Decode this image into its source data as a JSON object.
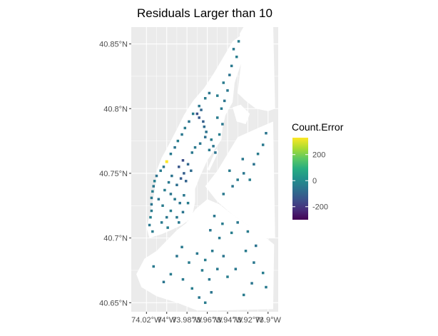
{
  "chart_data": {
    "type": "map",
    "title": "Residuals Larger than 10",
    "xlabel": "",
    "ylabel": "",
    "x_ticks": [
      {
        "value": -74.02,
        "label": "74.02°W"
      },
      {
        "value": -74.0,
        "label": "74°W"
      },
      {
        "value": -73.98,
        "label": "73.98°W"
      },
      {
        "value": -73.96,
        "label": "73.96°W"
      },
      {
        "value": -73.94,
        "label": "73.94°W"
      },
      {
        "value": -73.92,
        "label": "73.92°W"
      },
      {
        "value": -73.9,
        "label": "73.9°W"
      }
    ],
    "y_ticks": [
      {
        "value": 40.65,
        "label": "40.65°N"
      },
      {
        "value": 40.7,
        "label": "40.7°N"
      },
      {
        "value": 40.75,
        "label": "40.75°N"
      },
      {
        "value": 40.8,
        "label": "40.8°N"
      },
      {
        "value": 40.85,
        "label": "40.85°N"
      }
    ],
    "xlim": [
      -74.035,
      -73.89
    ],
    "ylim": [
      40.643,
      40.863
    ],
    "grid": true,
    "legend": {
      "title": "Count.Error",
      "placement": "right",
      "scale": "viridis",
      "range": [
        -300,
        330
      ],
      "ticks": [
        {
          "value": 200,
          "label": "200"
        },
        {
          "value": 0,
          "label": "0"
        },
        {
          "value": -200,
          "label": "-200"
        }
      ]
    },
    "colors": {
      "panel": "#ebebeb",
      "grid": "#ffffff",
      "land": "#ffffff"
    },
    "regions": [
      {
        "name": "manhattan",
        "outline": [
          [
            -74.017,
            40.7
          ],
          [
            -74.02,
            40.708
          ],
          [
            -74.016,
            40.72
          ],
          [
            -74.013,
            40.732
          ],
          [
            -74.011,
            40.742
          ],
          [
            -74.01,
            40.752
          ],
          [
            -74.005,
            40.762
          ],
          [
            -73.998,
            40.772
          ],
          [
            -73.99,
            40.784
          ],
          [
            -73.983,
            40.795
          ],
          [
            -73.974,
            40.806
          ],
          [
            -73.963,
            40.816
          ],
          [
            -73.953,
            40.828
          ],
          [
            -73.944,
            40.84
          ],
          [
            -73.935,
            40.852
          ],
          [
            -73.928,
            40.856
          ],
          [
            -73.92,
            40.852
          ],
          [
            -73.918,
            40.842
          ],
          [
            -73.927,
            40.834
          ],
          [
            -73.933,
            40.82
          ],
          [
            -73.935,
            40.805
          ],
          [
            -73.942,
            40.795
          ],
          [
            -73.945,
            40.785
          ],
          [
            -73.946,
            40.776
          ],
          [
            -73.953,
            40.768
          ],
          [
            -73.96,
            40.76
          ],
          [
            -73.967,
            40.748
          ],
          [
            -73.972,
            40.738
          ],
          [
            -73.972,
            40.728
          ],
          [
            -73.975,
            40.716
          ],
          [
            -73.985,
            40.71
          ],
          [
            -73.996,
            40.706
          ],
          [
            -74.005,
            40.703
          ]
        ]
      },
      {
        "name": "bronx",
        "outline": [
          [
            -73.926,
            40.84
          ],
          [
            -73.928,
            40.858
          ],
          [
            -73.922,
            40.866
          ],
          [
            -73.895,
            40.866
          ],
          [
            -73.893,
            40.8
          ],
          [
            -73.9,
            40.798
          ],
          [
            -73.912,
            40.8
          ],
          [
            -73.922,
            40.806
          ],
          [
            -73.93,
            40.812
          ]
        ]
      },
      {
        "name": "randalls-island",
        "outline": [
          [
            -73.935,
            40.801
          ],
          [
            -73.927,
            40.803
          ],
          [
            -73.918,
            40.796
          ],
          [
            -73.922,
            40.788
          ],
          [
            -73.931,
            40.79
          ]
        ]
      },
      {
        "name": "queens",
        "outline": [
          [
            -73.962,
            40.74
          ],
          [
            -73.95,
            40.752
          ],
          [
            -73.94,
            40.765
          ],
          [
            -73.93,
            40.778
          ],
          [
            -73.91,
            40.785
          ],
          [
            -73.895,
            40.79
          ],
          [
            -73.893,
            40.7
          ],
          [
            -73.905,
            40.7
          ],
          [
            -73.92,
            40.71
          ],
          [
            -73.935,
            40.718
          ],
          [
            -73.95,
            40.728
          ]
        ]
      },
      {
        "name": "brooklyn",
        "outline": [
          [
            -73.972,
            40.722
          ],
          [
            -73.96,
            40.73
          ],
          [
            -73.948,
            40.726
          ],
          [
            -73.935,
            40.718
          ],
          [
            -73.92,
            40.71
          ],
          [
            -73.905,
            40.702
          ],
          [
            -73.894,
            40.695
          ],
          [
            -73.895,
            40.645
          ],
          [
            -73.95,
            40.644
          ],
          [
            -73.97,
            40.644
          ],
          [
            -73.99,
            40.65
          ],
          [
            -74.01,
            40.655
          ],
          [
            -74.025,
            40.662
          ],
          [
            -74.03,
            40.672
          ],
          [
            -74.022,
            40.684
          ],
          [
            -74.01,
            40.69
          ],
          [
            -74.0,
            40.698
          ],
          [
            -73.99,
            40.706
          ],
          [
            -73.98,
            40.712
          ]
        ]
      },
      {
        "name": "roosevelt-island",
        "outline": [
          [
            -73.96,
            40.753
          ],
          [
            -73.955,
            40.762
          ],
          [
            -73.951,
            40.769
          ],
          [
            -73.949,
            40.767
          ],
          [
            -73.953,
            40.76
          ],
          [
            -73.958,
            40.752
          ]
        ]
      }
    ],
    "points": [
      [
        -74.0,
        40.759,
        330
      ],
      [
        -74.003,
        40.755,
        -55
      ],
      [
        -74.006,
        40.752,
        -40
      ],
      [
        -74.01,
        40.748,
        -60
      ],
      [
        -74.012,
        40.744,
        -30
      ],
      [
        -74.013,
        40.74,
        -50
      ],
      [
        -74.014,
        40.736,
        -35
      ],
      [
        -74.015,
        40.731,
        -45
      ],
      [
        -74.015,
        40.726,
        -60
      ],
      [
        -74.015,
        40.721,
        -40
      ],
      [
        -74.016,
        40.716,
        -30
      ],
      [
        -74.017,
        40.71,
        -50
      ],
      [
        -74.014,
        40.705,
        -40
      ],
      [
        -73.996,
        40.765,
        -45
      ],
      [
        -73.992,
        40.77,
        -55
      ],
      [
        -73.989,
        40.775,
        -35
      ],
      [
        -73.985,
        40.78,
        -50
      ],
      [
        -73.982,
        40.785,
        -40
      ],
      [
        -73.978,
        40.79,
        -60
      ],
      [
        -73.974,
        40.796,
        -35
      ],
      [
        -73.968,
        40.802,
        -50
      ],
      [
        -73.962,
        40.808,
        -40
      ],
      [
        -73.958,
        40.812,
        -55
      ],
      [
        -73.97,
        40.796,
        -140
      ],
      [
        -73.968,
        40.793,
        -120
      ],
      [
        -73.966,
        40.799,
        -90
      ],
      [
        -73.964,
        40.79,
        -110
      ],
      [
        -73.963,
        40.786,
        -80
      ],
      [
        -73.961,
        40.782,
        -60
      ],
      [
        -73.962,
        40.778,
        -70
      ],
      [
        -73.967,
        40.773,
        -55
      ],
      [
        -73.972,
        40.77,
        -45
      ],
      [
        -73.975,
        40.766,
        -50
      ],
      [
        -73.956,
        40.776,
        -40
      ],
      [
        -73.954,
        40.771,
        -55
      ],
      [
        -73.958,
        40.768,
        -45
      ],
      [
        -73.952,
        40.766,
        -60
      ],
      [
        -73.948,
        40.78,
        -35
      ],
      [
        -73.945,
        40.788,
        -50
      ],
      [
        -73.95,
        40.793,
        -40
      ],
      [
        -73.946,
        40.8,
        -45
      ],
      [
        -73.943,
        40.806,
        -55
      ],
      [
        -73.95,
        40.81,
        -35
      ],
      [
        -73.94,
        40.814,
        -50
      ],
      [
        -73.944,
        40.82,
        -40
      ],
      [
        -73.938,
        40.826,
        -60
      ],
      [
        -73.936,
        40.833,
        -45
      ],
      [
        -73.931,
        40.84,
        -35
      ],
      [
        -73.934,
        40.846,
        -50
      ],
      [
        -73.929,
        40.852,
        -40
      ],
      [
        -73.984,
        40.76,
        -150
      ],
      [
        -73.988,
        40.755,
        -130
      ],
      [
        -73.983,
        40.75,
        -110
      ],
      [
        -73.979,
        40.757,
        -90
      ],
      [
        -73.986,
        40.746,
        -120
      ],
      [
        -73.976,
        40.752,
        -80
      ],
      [
        -73.981,
        40.744,
        -100
      ],
      [
        -73.99,
        40.741,
        -70
      ],
      [
        -73.995,
        40.748,
        -60
      ],
      [
        -73.998,
        40.743,
        -50
      ],
      [
        -74.002,
        40.737,
        -40
      ],
      [
        -73.996,
        40.734,
        -55
      ],
      [
        -73.992,
        40.73,
        -45
      ],
      [
        -73.987,
        40.727,
        -60
      ],
      [
        -73.983,
        40.733,
        -50
      ],
      [
        -73.979,
        40.727,
        -40
      ],
      [
        -73.984,
        40.72,
        -55
      ],
      [
        -73.99,
        40.716,
        -45
      ],
      [
        -73.996,
        40.721,
        -35
      ],
      [
        -74.0,
        40.716,
        -50
      ],
      [
        -74.004,
        40.725,
        -40
      ],
      [
        -74.008,
        40.73,
        -60
      ],
      [
        -74.005,
        40.712,
        -45
      ],
      [
        -73.999,
        40.708,
        -35
      ],
      [
        -73.988,
        40.712,
        -50
      ],
      [
        -73.944,
        40.734,
        -45
      ],
      [
        -73.935,
        40.74,
        -55
      ],
      [
        -73.93,
        40.745,
        -40
      ],
      [
        -73.924,
        40.75,
        -50
      ],
      [
        -73.918,
        40.745,
        -35
      ],
      [
        -73.914,
        40.757,
        -60
      ],
      [
        -73.91,
        40.765,
        -40
      ],
      [
        -73.925,
        40.761,
        -50
      ],
      [
        -73.905,
        40.772,
        -45
      ],
      [
        -73.902,
        40.781,
        -55
      ],
      [
        -73.938,
        40.752,
        -40
      ],
      [
        -73.953,
        40.717,
        -50
      ],
      [
        -73.945,
        40.711,
        -40
      ],
      [
        -73.957,
        40.706,
        -55
      ],
      [
        -73.948,
        40.7,
        -45
      ],
      [
        -73.936,
        40.704,
        -35
      ],
      [
        -73.93,
        40.712,
        -50
      ],
      [
        -73.92,
        40.705,
        -40
      ],
      [
        -73.912,
        40.694,
        -60
      ],
      [
        -73.985,
        40.693,
        -45
      ],
      [
        -73.99,
        40.686,
        -55
      ],
      [
        -73.978,
        40.681,
        -40
      ],
      [
        -73.97,
        40.688,
        -50
      ],
      [
        -73.962,
        40.683,
        -35
      ],
      [
        -73.955,
        40.69,
        -45
      ],
      [
        -73.944,
        40.686,
        -55
      ],
      [
        -73.965,
        40.675,
        -40
      ],
      [
        -73.958,
        40.668,
        -50
      ],
      [
        -73.95,
        40.676,
        -45
      ],
      [
        -73.94,
        40.67,
        -35
      ],
      [
        -73.932,
        40.676,
        -50
      ],
      [
        -73.996,
        40.672,
        -40
      ],
      [
        -74.003,
        40.666,
        -55
      ],
      [
        -73.984,
        40.668,
        -45
      ],
      [
        -73.975,
        40.661,
        -35
      ],
      [
        -73.968,
        40.654,
        -50
      ],
      [
        -73.962,
        40.65,
        -40
      ],
      [
        -73.956,
        40.658,
        -55
      ],
      [
        -74.013,
        40.678,
        -45
      ],
      [
        -73.922,
        40.69,
        -40
      ],
      [
        -73.914,
        40.681,
        -50
      ],
      [
        -73.905,
        40.673,
        -35
      ],
      [
        -73.902,
        40.662,
        -45
      ],
      [
        -73.916,
        40.665,
        -55
      ],
      [
        -73.924,
        40.656,
        -40
      ]
    ]
  }
}
